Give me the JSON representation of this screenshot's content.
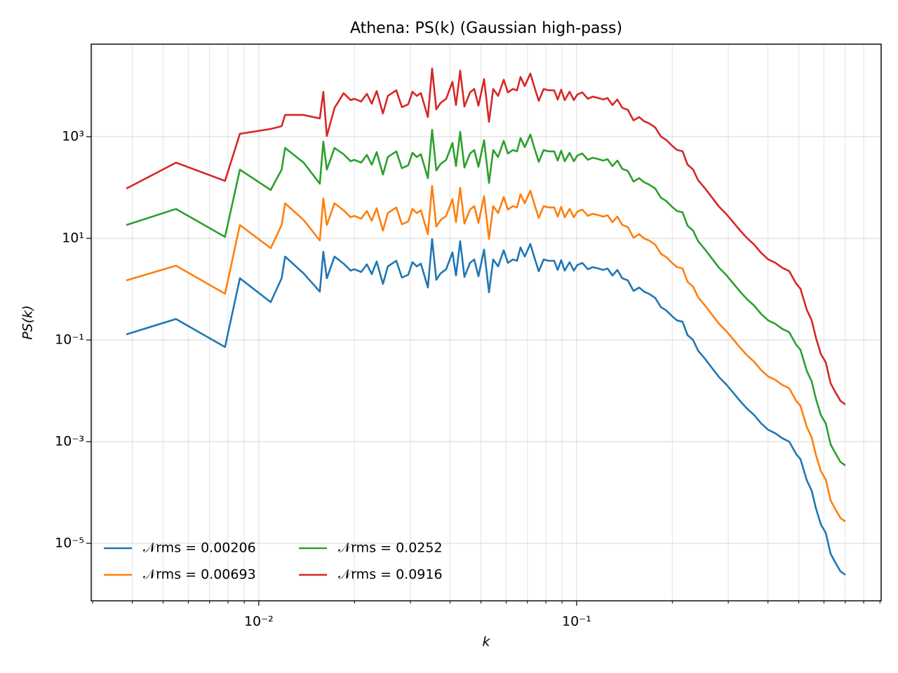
{
  "chart_data": {
    "type": "line",
    "title": "Athena: PS(k) (Gaussian high-pass)",
    "xlabel": "k",
    "ylabel": "PS(k)",
    "xscale": "log",
    "yscale": "log",
    "grid": true,
    "xminor_grid": true,
    "legend": "lower left",
    "legend_columns": 2,
    "xlim": [
      0.00297,
      0.908
    ],
    "ylim": [
      7.4e-07,
      66200
    ],
    "xticks": [
      {
        "value": 0.01,
        "label": "10⁻²"
      },
      {
        "value": 0.1,
        "label": "10⁻¹"
      }
    ],
    "yticks": [
      {
        "value": 1000,
        "label": "10³"
      },
      {
        "value": 10,
        "label": "10¹"
      },
      {
        "value": 0.1,
        "label": "10⁻¹"
      },
      {
        "value": 0.001,
        "label": "10⁻³"
      },
      {
        "value": 1e-05,
        "label": "10⁻⁵"
      }
    ],
    "x": [
      0.00383,
      0.00549,
      0.00783,
      0.00872,
      0.0109,
      0.0118,
      0.0121,
      0.01384,
      0.01556,
      0.01596,
      0.01637,
      0.01731,
      0.01849,
      0.01946,
      0.01996,
      0.021,
      0.02188,
      0.02267,
      0.02349,
      0.02458,
      0.02547,
      0.02708,
      0.0282,
      0.02952,
      0.03044,
      0.03139,
      0.03236,
      0.03404,
      0.0351,
      0.03618,
      0.03731,
      0.03886,
      0.04068,
      0.04173,
      0.04302,
      0.04436,
      0.0462,
      0.04763,
      0.0491,
      0.05114,
      0.053,
      0.05464,
      0.05662,
      0.05896,
      0.06078,
      0.06298,
      0.06493,
      0.0666,
      0.06866,
      0.07151,
      0.07372,
      0.076,
      0.07875,
      0.0816,
      0.08499,
      0.08717,
      0.08941,
      0.09172,
      0.09504,
      0.09799,
      0.1005,
      0.1042,
      0.1085,
      0.1124,
      0.1171,
      0.1213,
      0.1251,
      0.1296,
      0.1343,
      0.1392,
      0.1449,
      0.151,
      0.1573,
      0.1629,
      0.1688,
      0.1767,
      0.1841,
      0.1917,
      0.1997,
      0.2069,
      0.2154,
      0.2233,
      0.2325,
      0.241,
      0.2535,
      0.2667,
      0.2806,
      0.2952,
      0.3106,
      0.3268,
      0.3439,
      0.3618,
      0.3807,
      0.4005,
      0.4214,
      0.4434,
      0.4666,
      0.4909,
      0.5061,
      0.5298,
      0.549,
      0.566,
      0.5865,
      0.6077,
      0.6297,
      0.6525,
      0.6761,
      0.7006
    ],
    "series": [
      {
        "name": "𝒩rms = 0.00206",
        "color": "#1f77b4",
        "values": [
          0.129,
          0.259,
          0.0728,
          1.64,
          0.556,
          1.64,
          4.38,
          2.04,
          0.895,
          5.47,
          1.64,
          4.38,
          3.18,
          2.32,
          2.47,
          2.18,
          3.09,
          1.98,
          3.51,
          1.27,
          2.81,
          3.62,
          1.69,
          1.92,
          3.4,
          2.81,
          3.18,
          1.08,
          9.68,
          1.53,
          2.04,
          2.47,
          5.3,
          1.86,
          8.81,
          1.74,
          3.29,
          3.85,
          1.8,
          6.01,
          0.867,
          3.85,
          2.81,
          5.83,
          3.29,
          3.85,
          3.62,
          6.62,
          4.38,
          7.76,
          4.11,
          2.25,
          3.85,
          3.62,
          3.62,
          2.39,
          3.73,
          2.32,
          3.4,
          2.32,
          2.99,
          3.29,
          2.47,
          2.72,
          2.55,
          2.39,
          2.55,
          1.86,
          2.39,
          1.64,
          1.49,
          0.924,
          1.08,
          0.895,
          0.813,
          0.673,
          0.445,
          0.379,
          0.294,
          0.243,
          0.229,
          0.125,
          0.1,
          0.0621,
          0.0425,
          0.0281,
          0.0186,
          0.0135,
          0.00925,
          0.00631,
          0.00445,
          0.00334,
          0.00229,
          0.00171,
          0.00147,
          0.00117,
          0.001,
          0.000565,
          0.000452,
          0.000174,
          0.000108,
          4.9e-05,
          2.36e-05,
          1.61e-05,
          6.21e-06,
          4.11e-06,
          2.81e-06,
          2.39e-06
        ]
      },
      {
        "name": "𝒩rms = 0.00693",
        "color": "#ff7f0e",
        "values": [
          1.49,
          2.9,
          0.813,
          18.3,
          6.41,
          18.3,
          49.0,
          22.9,
          9.1,
          61.1,
          18.3,
          49.0,
          35.6,
          26.0,
          27.7,
          24.4,
          34.6,
          22.2,
          39.3,
          14.2,
          31.5,
          40.5,
          18.9,
          21.5,
          38.1,
          31.5,
          35.6,
          12.1,
          108,
          17.1,
          22.8,
          27.7,
          59.4,
          20.8,
          98.7,
          19.5,
          36.8,
          43.1,
          20.2,
          67.3,
          9.71,
          43.1,
          31.5,
          65.3,
          36.8,
          43.1,
          40.5,
          74.1,
          49.1,
          86.9,
          46.0,
          25.2,
          43.1,
          40.5,
          40.5,
          26.8,
          41.8,
          26.0,
          38.1,
          26.0,
          33.5,
          36.8,
          27.7,
          30.5,
          28.6,
          26.8,
          28.6,
          20.8,
          26.8,
          18.4,
          16.7,
          10.3,
          12.1,
          10.0,
          9.11,
          7.54,
          4.98,
          4.24,
          3.29,
          2.72,
          2.56,
          1.4,
          1.12,
          0.696,
          0.476,
          0.315,
          0.208,
          0.151,
          0.104,
          0.0707,
          0.0498,
          0.0374,
          0.0256,
          0.0192,
          0.0165,
          0.0131,
          0.0112,
          0.00633,
          0.00506,
          0.00195,
          0.00121,
          0.000549,
          0.000264,
          0.00018,
          6.96e-05,
          4.6e-05,
          3.15e-05,
          2.68e-05
        ]
      },
      {
        "name": "𝒩rms = 0.0252",
        "color": "#2ca02c",
        "values": [
          18.3,
          37.9,
          10.7,
          225,
          89.5,
          225,
          601,
          309,
          119,
          800,
          225,
          601,
          452,
          329,
          351,
          310,
          439,
          281,
          498,
          180,
          399,
          514,
          240,
          273,
          483,
          399,
          452,
          153,
          1370,
          217,
          290,
          351,
          753,
          264,
          1250,
          247,
          467,
          547,
          256,
          853,
          123,
          547,
          399,
          828,
          467,
          547,
          514,
          940,
          622,
          1100,
          584,
          320,
          547,
          514,
          514,
          339,
          530,
          329,
          483,
          329,
          425,
          467,
          351,
          386,
          362,
          339,
          362,
          264,
          339,
          233,
          212,
          131,
          153,
          127,
          115,
          95.6,
          63.2,
          53.8,
          41.7,
          34.5,
          32.5,
          17.8,
          14.2,
          8.82,
          6.04,
          3.99,
          2.64,
          1.92,
          1.31,
          0.896,
          0.632,
          0.474,
          0.325,
          0.243,
          0.209,
          0.166,
          0.142,
          0.0802,
          0.0642,
          0.0247,
          0.0153,
          0.00696,
          0.00335,
          0.00229,
          0.000882,
          0.000584,
          0.000399,
          0.000339
        ]
      },
      {
        "name": "𝒩rms = 0.0916",
        "color": "#d62728",
        "values": [
          95.3,
          309,
          135,
          1140,
          1420,
          1610,
          2680,
          2680,
          2290,
          7640,
          1030,
          3680,
          7190,
          5240,
          5580,
          4930,
          6980,
          4470,
          7930,
          2870,
          6350,
          8180,
          3820,
          4340,
          7680,
          6350,
          7190,
          2440,
          21900,
          3460,
          4610,
          5580,
          12000,
          4200,
          19900,
          3930,
          7440,
          8700,
          4070,
          13600,
          1960,
          8700,
          6350,
          13200,
          7440,
          8700,
          8180,
          15000,
          9900,
          17500,
          9290,
          5090,
          8700,
          8180,
          8180,
          5400,
          8430,
          5240,
          7680,
          5240,
          6760,
          7440,
          5580,
          6150,
          5760,
          5400,
          5760,
          4200,
          5400,
          3710,
          3370,
          2090,
          2440,
          2020,
          1840,
          1520,
          1010,
          857,
          664,
          549,
          518,
          283,
          226,
          140,
          96.1,
          63.5,
          42.0,
          30.5,
          20.9,
          14.3,
          10.1,
          7.55,
          5.18,
          3.86,
          3.32,
          2.64,
          2.26,
          1.28,
          1.02,
          0.393,
          0.244,
          0.111,
          0.0533,
          0.0364,
          0.014,
          0.00929,
          0.00635,
          0.0054
        ]
      }
    ]
  }
}
